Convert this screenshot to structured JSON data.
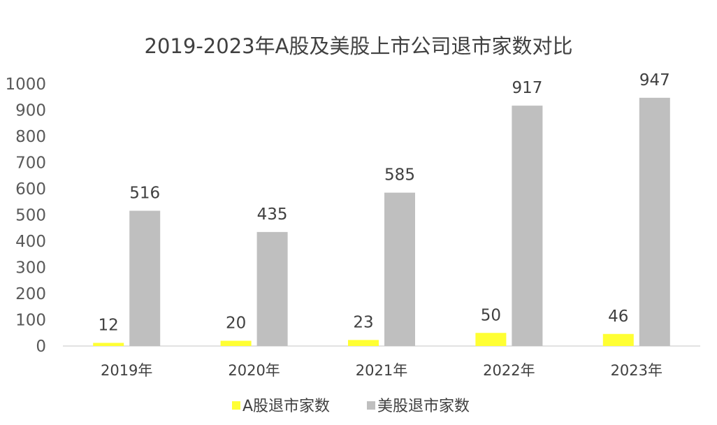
{
  "chart_data": {
    "type": "bar",
    "title": "2019-2023年A股及美股上市公司退市家数对比",
    "categories": [
      "2019年",
      "2020年",
      "2021年",
      "2022年",
      "2023年"
    ],
    "series": [
      {
        "name": "A股退市家数",
        "color": "#ffff33",
        "values": [
          12,
          20,
          23,
          50,
          46
        ]
      },
      {
        "name": "美股退市家数",
        "color": "#bfbfbf",
        "values": [
          516,
          435,
          585,
          917,
          947
        ]
      }
    ],
    "ylim": [
      0,
      1000
    ],
    "yticks": [
      0,
      100,
      200,
      300,
      400,
      500,
      600,
      700,
      800,
      900,
      1000
    ],
    "grid": false,
    "legend": "bottom",
    "data_labels": true
  }
}
